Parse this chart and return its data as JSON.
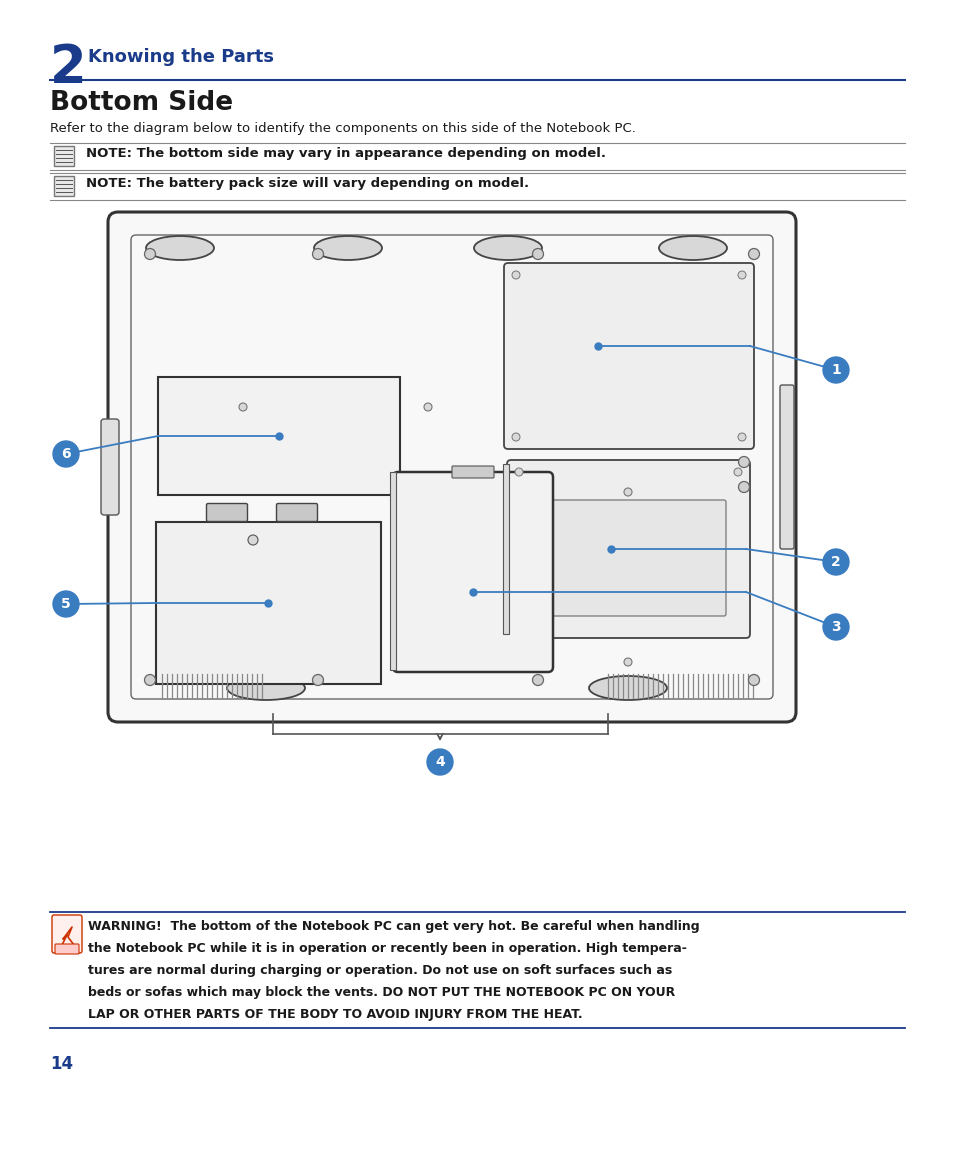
{
  "bg_color": "#ffffff",
  "page_width": 9.54,
  "page_height": 11.55,
  "chapter_num": "2",
  "chapter_title": "Knowing the Parts",
  "section_title": "Bottom Side",
  "intro_text": "Refer to the diagram below to identify the components on this side of the Notebook PC.",
  "note1": "NOTE: The bottom side may vary in appearance depending on model.",
  "note2": "NOTE: The battery pack size will vary depending on model.",
  "warning_line1": "WARNING!  The bottom of the Notebook PC can get very hot. Be careful when handling",
  "warning_line2": "the Notebook PC while it is in operation or recently been in operation. High tempera-",
  "warning_line3": "tures are normal during charging or operation. Do not use on soft surfaces such as",
  "warning_line4": "beds or sofas which may block the vents. DO NOT PUT THE NOTEBOOK PC ON YOUR",
  "warning_line5": "LAP OR OTHER PARTS OF THE BODY TO AVOID INJURY FROM THE HEAT.",
  "page_num": "14",
  "blue_color": "#1a3a8a",
  "light_blue": "#3a7cc0",
  "dark_text": "#1a1a1a",
  "line_color": "#3a7cc0",
  "gray_line": "#888888",
  "diagram_edge": "#333333",
  "diagram_fill": "#f8f8f8",
  "region_fill": "#f0f0f0",
  "callout_blue": "#3a7cc0"
}
